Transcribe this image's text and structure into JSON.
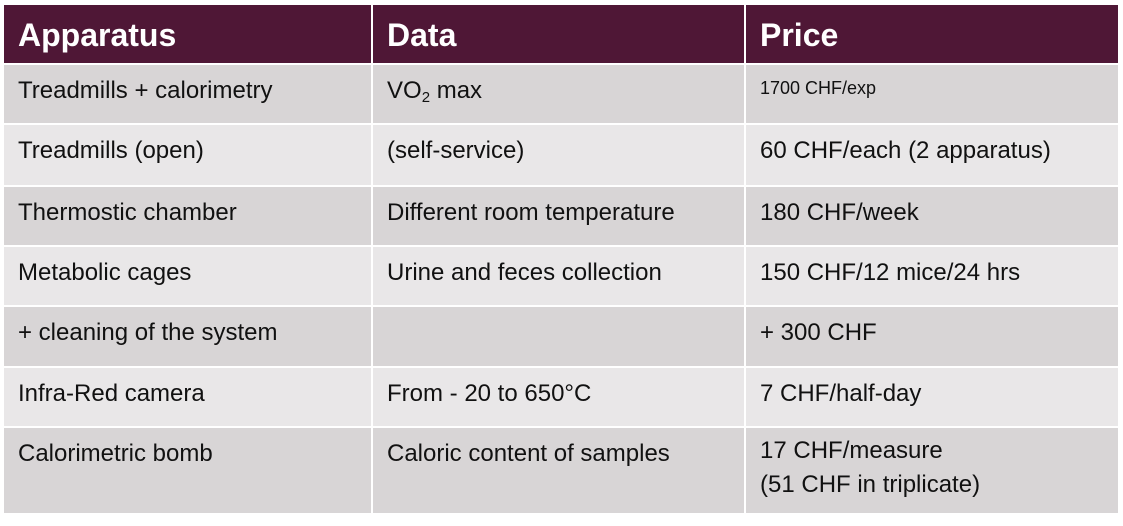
{
  "table": {
    "header": [
      "Apparatus",
      "Data",
      "Price"
    ],
    "rows": [
      [
        "Treadmills + calorimetry",
        {
          "main": "VO",
          "sub": "2",
          "rest": " max"
        },
        "1700 CHF/exp"
      ],
      [
        "Treadmills (open)",
        "(self-service)",
        "60 CHF/each (2 apparatus)"
      ],
      [
        "Thermostic chamber",
        "Different room temperature",
        "180 CHF/week"
      ],
      [
        "Metabolic cages",
        "Urine and feces collection",
        "150 CHF/12 mice/24 hrs"
      ],
      [
        "+ cleaning of the system",
        null,
        " + 300 CHF"
      ],
      [
        "Infra-Red camera",
        "From - 20 to 650°C",
        "7 CHF/half-day"
      ],
      [
        "Calorimetric bomb",
        "Caloric content of samples",
        [
          "17 CHF/measure",
          "(51 CHF in triplicate)"
        ]
      ]
    ]
  }
}
